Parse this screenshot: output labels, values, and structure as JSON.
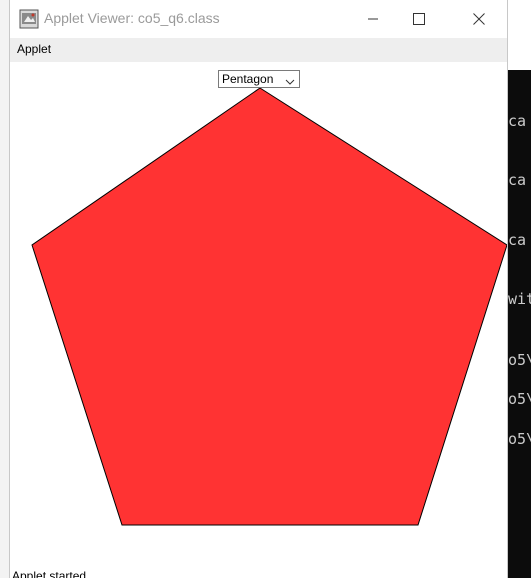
{
  "window": {
    "title": "Applet Viewer: co5_q6.class"
  },
  "menu": {
    "items": [
      "Applet"
    ]
  },
  "shape_select": {
    "selected": "Pentagon"
  },
  "shape": {
    "fill": "#ff3333",
    "stroke": "#000000"
  },
  "status": {
    "text": "Applet started"
  },
  "background_terminal": {
    "lines": [
      "ca",
      "ca",
      "ca",
      "wit",
      "o5\\",
      "o5\\",
      "o5\\"
    ]
  }
}
